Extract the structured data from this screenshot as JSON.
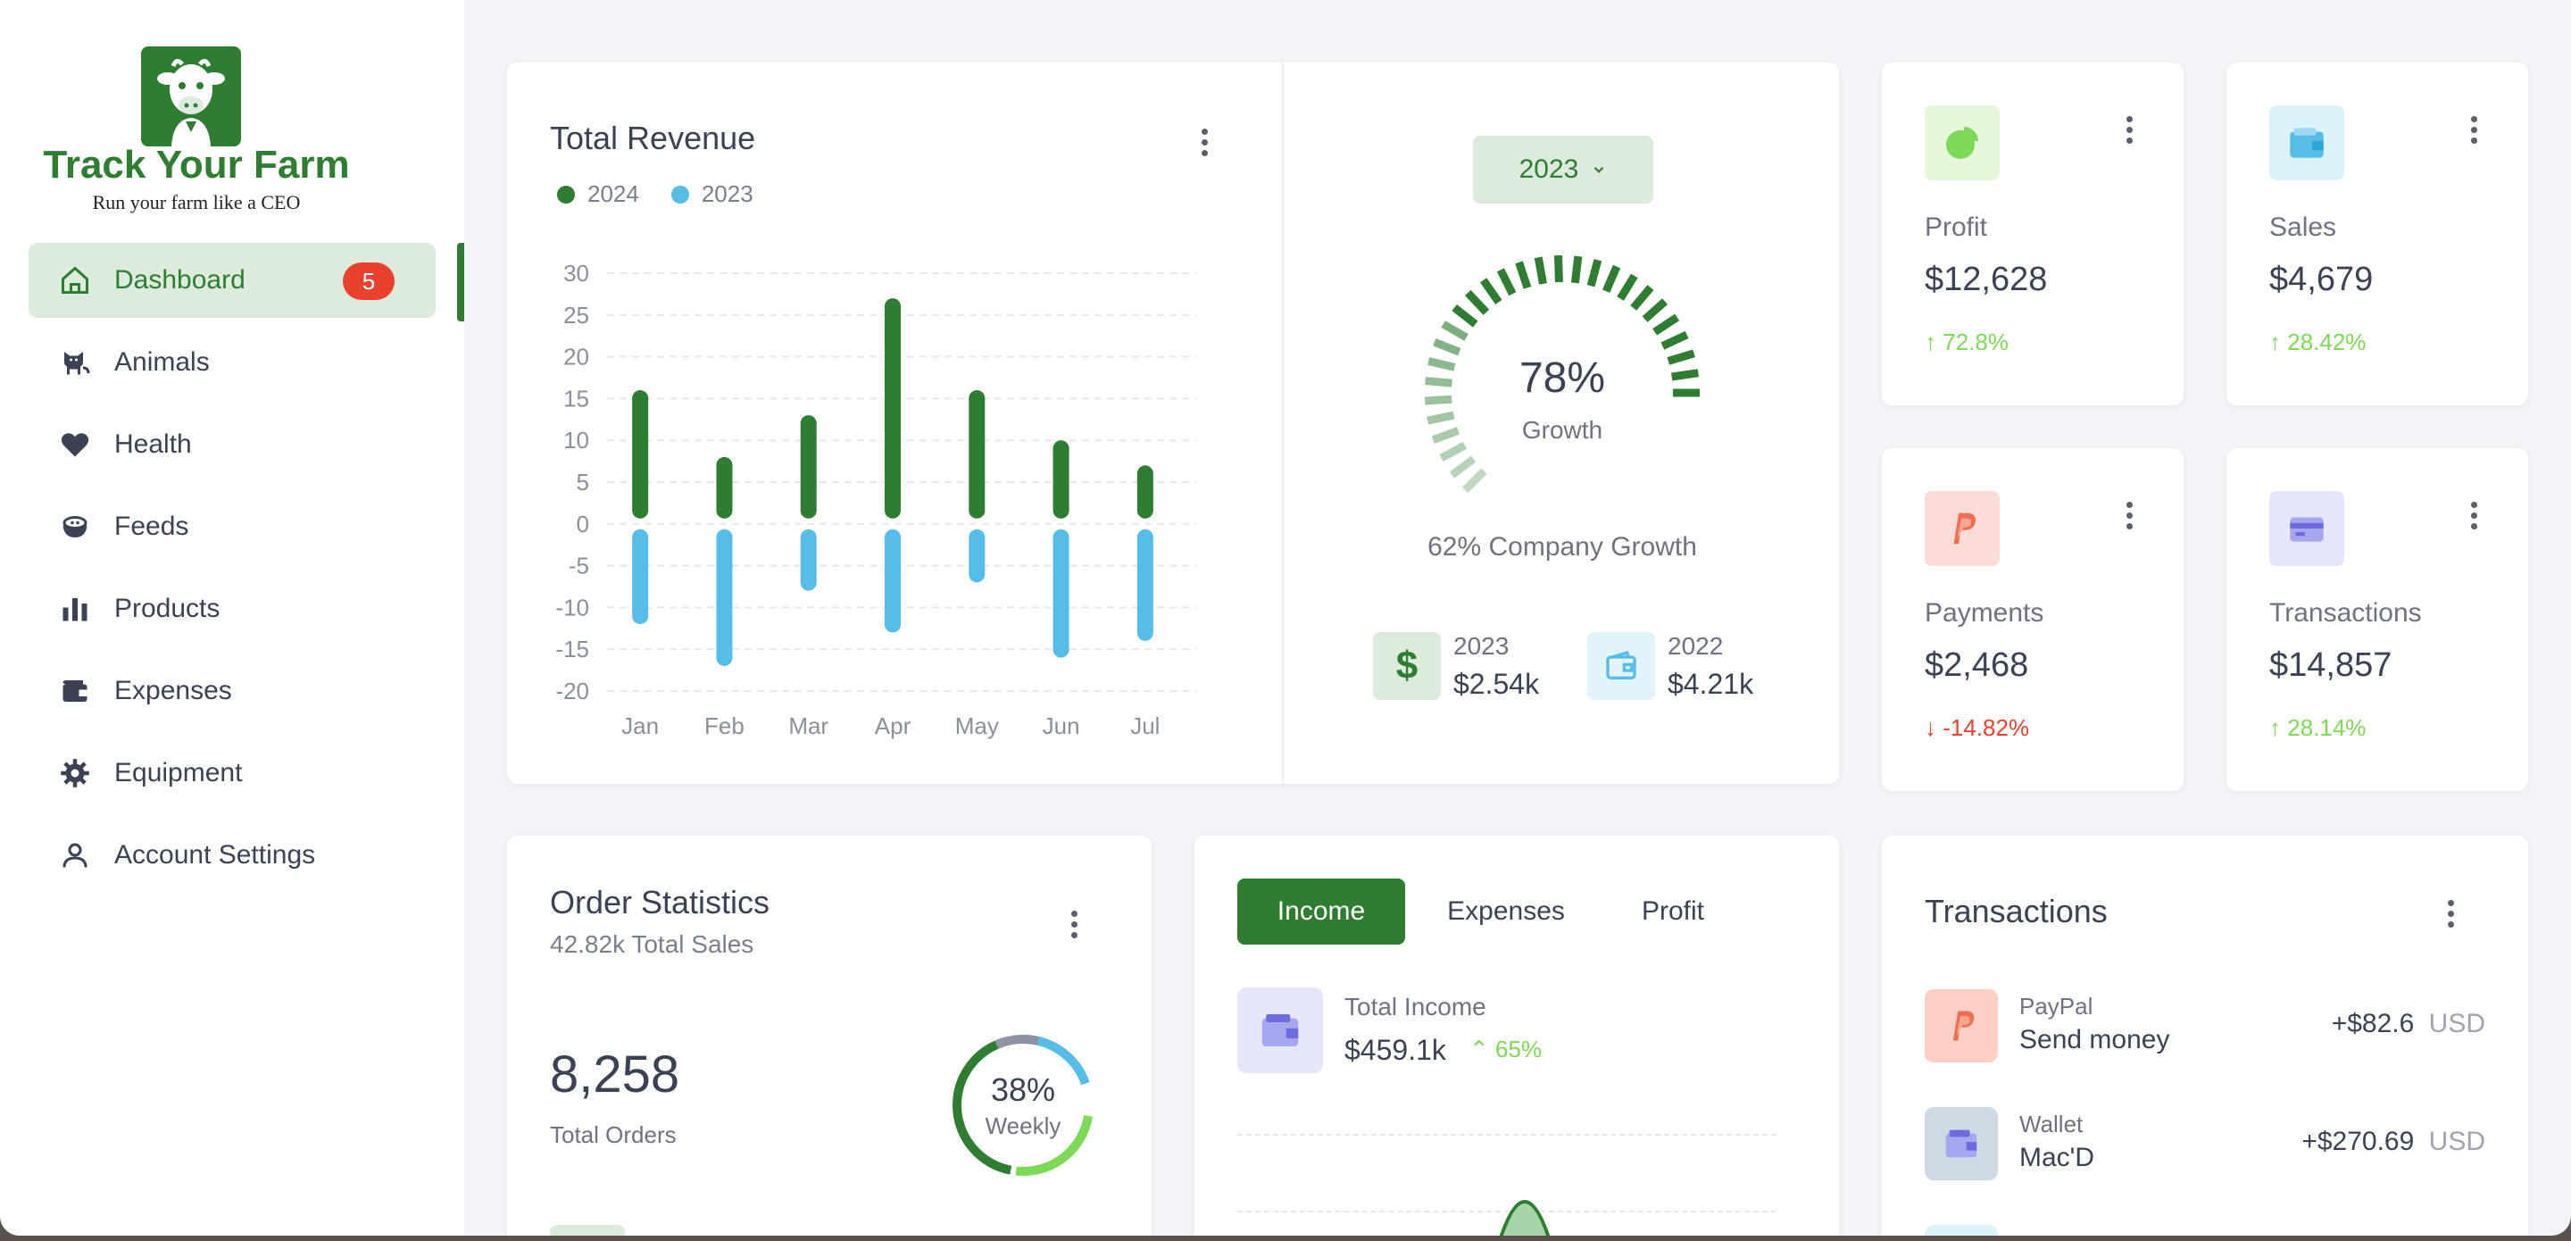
{
  "brand": {
    "name": "Track Your Farm",
    "tagline": "Run your farm like a CEO"
  },
  "nav": {
    "items": [
      {
        "label": "Dashboard",
        "icon": "home-icon",
        "badge": "5",
        "active": true
      },
      {
        "label": "Animals",
        "icon": "cat-icon"
      },
      {
        "label": "Health",
        "icon": "heart-icon"
      },
      {
        "label": "Feeds",
        "icon": "bowl-icon"
      },
      {
        "label": "Products",
        "icon": "bar-chart-icon"
      },
      {
        "label": "Expenses",
        "icon": "wallet-icon"
      },
      {
        "label": "Equipment",
        "icon": "gear-icon"
      },
      {
        "label": "Account Settings",
        "icon": "user-icon"
      }
    ]
  },
  "colors": {
    "primary": "#2e7d32",
    "blue": "#56bde8",
    "red": "#e8412f",
    "light_green": "#7ed957"
  },
  "revenue": {
    "title": "Total Revenue",
    "legend": [
      {
        "label": "2024",
        "color": "#2e7d32"
      },
      {
        "label": "2023",
        "color": "#56bde8"
      }
    ]
  },
  "chart_data": {
    "type": "bar",
    "title": "Total Revenue",
    "categories": [
      "Jan",
      "Feb",
      "Mar",
      "Apr",
      "May",
      "Jun",
      "Jul"
    ],
    "series": [
      {
        "name": "2024",
        "values": [
          16,
          8,
          13,
          27,
          16,
          10,
          7
        ]
      },
      {
        "name": "2023",
        "values": [
          -12,
          -17,
          -8,
          -13,
          -7,
          -16,
          -14
        ]
      }
    ],
    "yticks": [
      "30",
      "25",
      "20",
      "15",
      "10",
      "5",
      "0",
      "-5",
      "-10",
      "-15",
      "-20"
    ],
    "ylim": [
      -20,
      30
    ],
    "grid": true,
    "legend": "top-left"
  },
  "growth": {
    "year_button": "2023",
    "percent": "78%",
    "percent_value": 0.78,
    "label": "Growth",
    "company": "62% Company Growth",
    "items": [
      {
        "year": "2023",
        "value": "$2.54k",
        "icon": "dollar-icon"
      },
      {
        "year": "2022",
        "value": "$4.21k",
        "icon": "wallet-icon"
      }
    ]
  },
  "stats": [
    {
      "label": "Profit",
      "value": "$12,628",
      "change": "72.8%",
      "direction": "up",
      "icon": "pie-chart-icon"
    },
    {
      "label": "Sales",
      "value": "$4,679",
      "change": "28.42%",
      "direction": "up",
      "icon": "wallet-icon"
    },
    {
      "label": "Payments",
      "value": "$2,468",
      "change": "-14.82%",
      "direction": "down",
      "icon": "paypal-icon"
    },
    {
      "label": "Transactions",
      "value": "$14,857",
      "change": "28.14%",
      "direction": "up",
      "icon": "credit-card-icon"
    }
  ],
  "orders": {
    "title": "Order Statistics",
    "subtitle": "42.82k Total Sales",
    "total": "8,258",
    "total_label": "Total Orders",
    "donut_percent": "38%",
    "donut_label": "Weekly"
  },
  "income": {
    "tabs": [
      "Income",
      "Expenses",
      "Profit"
    ],
    "active_tab": "Income",
    "label": "Total Income",
    "value": "$459.1k",
    "change": "65%"
  },
  "transactions": {
    "title": "Transactions",
    "rows": [
      {
        "source": "PayPal",
        "desc": "Send money",
        "amount": "+$82.6",
        "currency": "USD",
        "icon": "paypal-icon"
      },
      {
        "source": "Wallet",
        "desc": "Mac'D",
        "amount": "+$270.69",
        "currency": "USD",
        "icon": "wallet-icon"
      }
    ]
  }
}
